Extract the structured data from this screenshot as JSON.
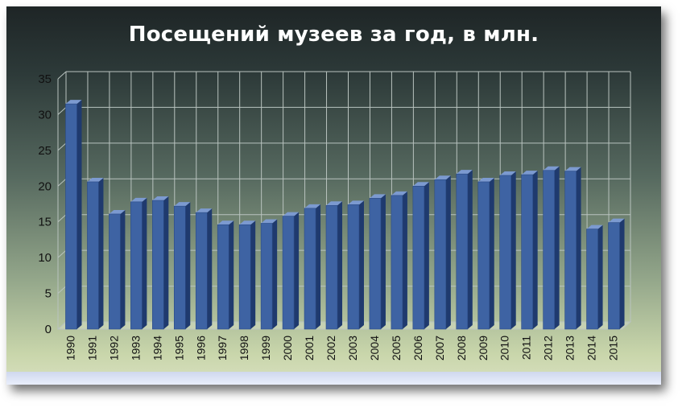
{
  "chart_data": {
    "type": "bar",
    "title": "Посещений музеев за год, в млн.",
    "xlabel": "",
    "ylabel": "",
    "ylim": [
      0,
      35
    ],
    "yticks": [
      "0",
      "5",
      "10",
      "15",
      "20",
      "25",
      "30",
      "35"
    ],
    "grid": true,
    "categories": [
      "1990",
      "1991",
      "1992",
      "1993",
      "1994",
      "1995",
      "1996",
      "1997",
      "1998",
      "1999",
      "2000",
      "2001",
      "2002",
      "2003",
      "2004",
      "2005",
      "2006",
      "2007",
      "2008",
      "2009",
      "2010",
      "2011",
      "2012",
      "2013",
      "2014",
      "2015"
    ],
    "values": [
      31.5,
      20.6,
      16.1,
      17.8,
      18.0,
      17.2,
      16.3,
      14.6,
      14.6,
      14.8,
      15.8,
      16.9,
      17.3,
      17.4,
      18.3,
      18.7,
      20.0,
      20.9,
      21.7,
      20.6,
      21.5,
      21.6,
      22.2,
      22.1,
      14.0,
      14.9
    ],
    "colors": {
      "bar_front": "#3e63a3",
      "bar_side": "#1f3a6e",
      "bar_top": "#7c9ad0",
      "grid": "#b9c3bf"
    }
  }
}
